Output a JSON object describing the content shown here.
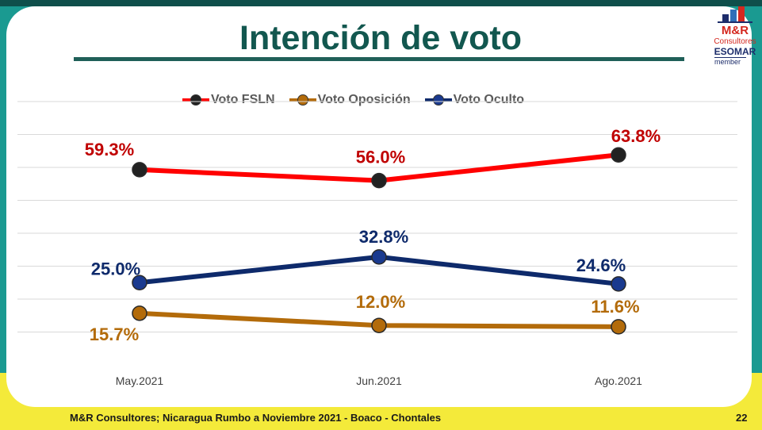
{
  "slide": {
    "title": "Intención de voto",
    "footer": "M&R Consultores; Nicaragua Rumbo a Noviembre 2021 - Boaco - Chontales",
    "page_number": "22"
  },
  "logo": {
    "name": "M&R",
    "sub": "Consultores",
    "esomar": "ESOMAR",
    "member": "member"
  },
  "chart_data": {
    "type": "line",
    "categories": [
      "May.2021",
      "Jun.2021",
      "Ago.2021"
    ],
    "series": [
      {
        "name": "Voto FSLN",
        "values": [
          59.3,
          56.0,
          63.8
        ],
        "labels": [
          "59.3%",
          "56.0%",
          "63.8%"
        ],
        "color": "#ff0000",
        "label_color": "#c00000",
        "marker_color": "#222222"
      },
      {
        "name": "Voto Oposición",
        "values": [
          15.7,
          12.0,
          11.6
        ],
        "labels": [
          "15.7%",
          "12.0%",
          "11.6%"
        ],
        "color": "#b36b0a",
        "label_color": "#b36b0a",
        "marker_color": "#b36b0a"
      },
      {
        "name": "Voto Oculto",
        "values": [
          25.0,
          32.8,
          24.6
        ],
        "labels": [
          "25.0%",
          "32.8%",
          "24.6%"
        ],
        "color": "#0e2a6b",
        "label_color": "#0e2a6b",
        "marker_color": "#1a3a8f"
      }
    ],
    "ylim": [
      0,
      80
    ],
    "grid": true,
    "legend_position": "top"
  }
}
